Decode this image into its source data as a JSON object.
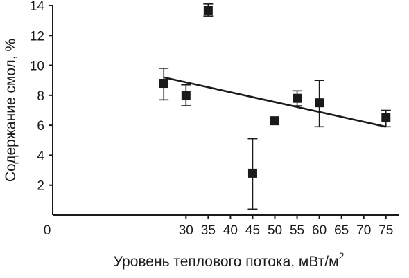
{
  "chart_data": {
    "type": "scatter",
    "xlabel": "Уровень теплового потока, мВт/м",
    "xlabel_superscript": "2",
    "ylabel": "Содержание смол, %",
    "xlim": [
      0,
      78
    ],
    "ylim": [
      0,
      14
    ],
    "x_axis_zero_label": "0",
    "x_ticks": [
      30,
      35,
      40,
      45,
      50,
      55,
      60,
      65,
      70,
      75
    ],
    "y_ticks": [
      2,
      4,
      6,
      8,
      10,
      12,
      14
    ],
    "grid": false,
    "legend": "none",
    "points": [
      {
        "x": 25,
        "y": 8.8,
        "y_low": 7.7,
        "y_high": 9.8
      },
      {
        "x": 30,
        "y": 8.0,
        "y_low": 7.3,
        "y_high": 8.7
      },
      {
        "x": 35,
        "y": 13.7,
        "y_low": 13.3,
        "y_high": 14.1
      },
      {
        "x": 45,
        "y": 2.8,
        "y_low": 0.4,
        "y_high": 5.1
      },
      {
        "x": 50,
        "y": 6.3
      },
      {
        "x": 55,
        "y": 7.8,
        "y_low": 7.3,
        "y_high": 8.3
      },
      {
        "x": 60,
        "y": 7.5,
        "y_low": 5.9,
        "y_high": 9.0
      },
      {
        "x": 75,
        "y": 6.5,
        "y_low": 5.9,
        "y_high": 7.0
      }
    ],
    "trendline": {
      "x": [
        25,
        75
      ],
      "y": [
        9.2,
        5.9
      ]
    }
  }
}
